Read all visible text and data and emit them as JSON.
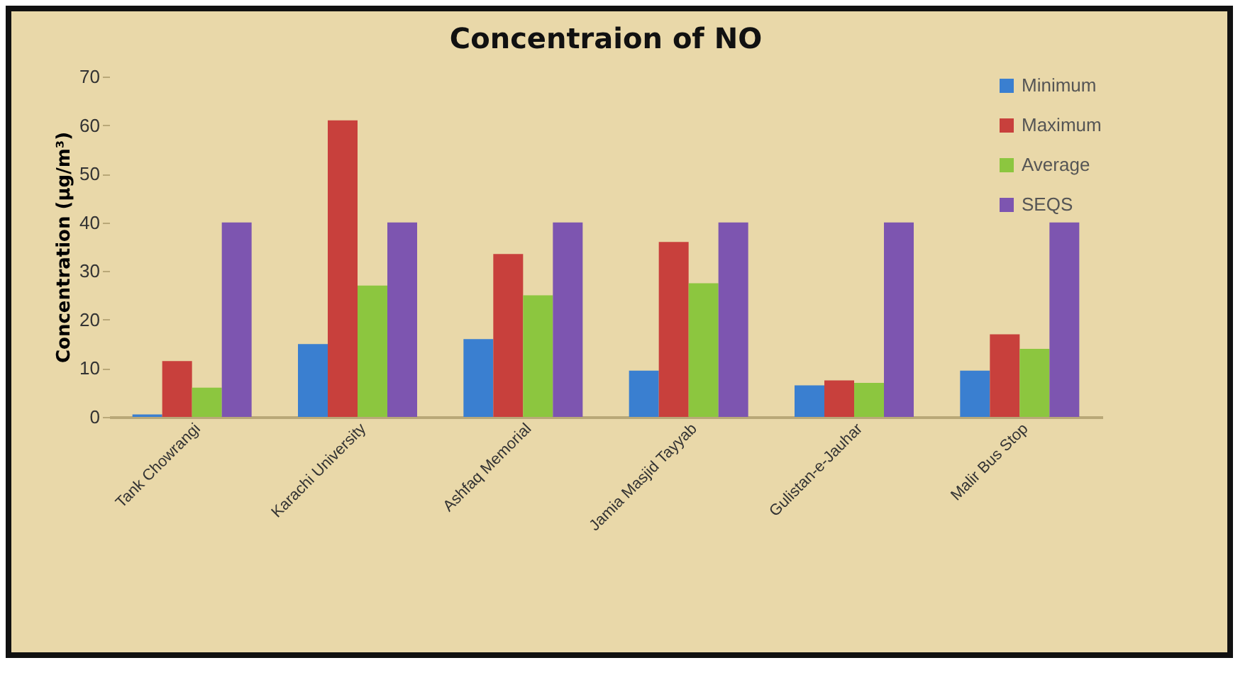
{
  "chart_data": {
    "type": "bar",
    "title": "Concentraion of NO",
    "ylabel": "Concentration (µg/m³)",
    "categories": [
      "Tank Chowrangi",
      "Karachi University",
      "Ashfaq Memorial",
      "Jamia Masjid Tayyab",
      "Gulistan-e-Jauhar",
      "Malir Bus Stop"
    ],
    "series": [
      {
        "name": "Minimum",
        "color": "#3a7fd0",
        "values": [
          0.5,
          15,
          16,
          9.5,
          6.5,
          9.5
        ]
      },
      {
        "name": "Maximum",
        "color": "#c8403c",
        "values": [
          11.5,
          61,
          33.5,
          36,
          7.5,
          17
        ]
      },
      {
        "name": "Average",
        "color": "#8cc63f",
        "values": [
          6,
          27,
          25,
          27.5,
          7,
          14
        ]
      },
      {
        "name": "SEQS",
        "color": "#7d55b0",
        "values": [
          40,
          40,
          40,
          40,
          40,
          40
        ]
      }
    ],
    "ylim": [
      0,
      70
    ],
    "yticks": [
      0,
      10,
      20,
      30,
      40,
      50,
      60,
      70
    ],
    "grid": false,
    "legend": "top right"
  }
}
